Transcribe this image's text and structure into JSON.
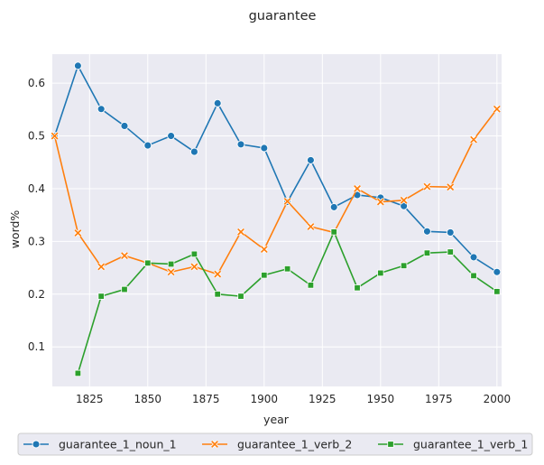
{
  "chart_data": {
    "type": "line",
    "title": "guarantee",
    "xlabel": "year",
    "ylabel": "word%",
    "xlim": [
      1809,
      2002
    ],
    "ylim": [
      0.025,
      0.655
    ],
    "xticks": [
      1825,
      1850,
      1875,
      1900,
      1925,
      1950,
      1975,
      2000
    ],
    "yticks": [
      0.1,
      0.2,
      0.3,
      0.4,
      0.5,
      0.6
    ],
    "grid": true,
    "legend_position": "bottom",
    "series": [
      {
        "name": "guarantee_1_noun_1",
        "color": "#1f77b4",
        "marker": "circle",
        "x": [
          1810,
          1820,
          1830,
          1840,
          1850,
          1860,
          1870,
          1880,
          1890,
          1900,
          1910,
          1920,
          1930,
          1940,
          1950,
          1960,
          1970,
          1980,
          1990,
          2000
        ],
        "y": [
          0.5,
          0.633,
          0.551,
          0.519,
          0.482,
          0.5,
          0.47,
          0.562,
          0.484,
          0.477,
          0.375,
          0.454,
          0.365,
          0.388,
          0.383,
          0.367,
          0.319,
          0.317,
          0.27,
          0.242
        ]
      },
      {
        "name": "guarantee_1_verb_2",
        "color": "#ff7f0e",
        "marker": "x",
        "x": [
          1810,
          1820,
          1830,
          1840,
          1850,
          1860,
          1870,
          1880,
          1890,
          1900,
          1910,
          1920,
          1930,
          1940,
          1950,
          1960,
          1970,
          1980,
          1990,
          2000
        ],
        "y": [
          0.5,
          0.316,
          0.252,
          0.273,
          0.259,
          0.242,
          0.252,
          0.238,
          0.318,
          0.285,
          0.376,
          0.328,
          0.317,
          0.4,
          0.375,
          0.378,
          0.404,
          0.403,
          0.493,
          0.551
        ]
      },
      {
        "name": "guarantee_1_verb_1",
        "color": "#2ca02c",
        "marker": "square",
        "x": [
          1820,
          1830,
          1840,
          1850,
          1860,
          1870,
          1880,
          1890,
          1900,
          1910,
          1920,
          1930,
          1940,
          1950,
          1960,
          1970,
          1980,
          1990,
          2000
        ],
        "y": [
          0.05,
          0.196,
          0.209,
          0.259,
          0.257,
          0.276,
          0.2,
          0.196,
          0.236,
          0.248,
          0.217,
          0.318,
          0.212,
          0.24,
          0.254,
          0.278,
          0.28,
          0.235,
          0.205
        ]
      }
    ]
  }
}
